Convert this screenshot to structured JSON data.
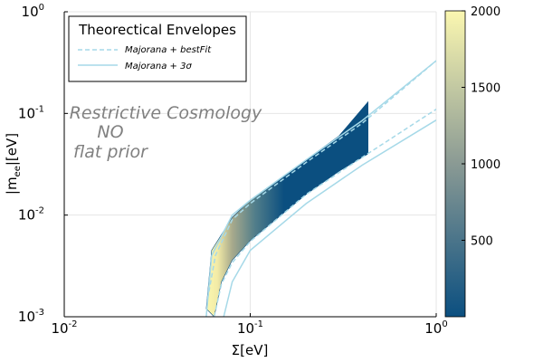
{
  "chart_data": {
    "type": "heatmap",
    "xlabel": "Σ[eV]",
    "ylabel": "|m_ee|[eV]",
    "xscale": "log",
    "yscale": "log",
    "xlim": [
      0.01,
      1
    ],
    "ylim": [
      0.001,
      1
    ],
    "x_ticks": [
      "10",
      "10",
      "10"
    ],
    "x_tick_exponents": [
      "-2",
      "-1",
      "0"
    ],
    "y_ticks": [
      "10",
      "10",
      "10",
      "10"
    ],
    "y_tick_exponents": [
      "-3",
      "-2",
      "-1",
      "0"
    ],
    "grid": true,
    "colorbar": {
      "range": [
        0,
        2000
      ],
      "ticks": [
        "500",
        "1000",
        "1500",
        "2000"
      ],
      "tick_values": [
        500,
        1000,
        1500,
        2000
      ],
      "colors": [
        "#0b4f80",
        "#8a9a94",
        "#fbf7b0"
      ]
    },
    "annotation": [
      "Restrictive Cosmology",
      "NO",
      "flat prior"
    ],
    "legend": {
      "title": "Theorectical Envelopes",
      "position": "top-left",
      "entries": [
        {
          "label": "Majorana + bestFit",
          "style": "dashed",
          "color": "#a6d9e8"
        },
        {
          "label": "Majorana + 3σ",
          "style": "solid",
          "color": "#a6d9e8"
        }
      ]
    },
    "series": [
      {
        "name": "Majorana + bestFit",
        "branch": "upper",
        "x": [
          0.059,
          0.065,
          0.08,
          0.1,
          0.2,
          0.4,
          1.0
        ],
        "y": [
          0.0015,
          0.004,
          0.009,
          0.013,
          0.033,
          0.08,
          0.33
        ]
      },
      {
        "name": "Majorana + bestFit",
        "branch": "lower",
        "x": [
          0.064,
          0.07,
          0.08,
          0.1,
          0.2,
          0.4,
          1.0
        ],
        "y": [
          0.001,
          0.0021,
          0.0034,
          0.0055,
          0.016,
          0.037,
          0.11
        ]
      },
      {
        "name": "Majorana + 3σ",
        "branch": "upper",
        "x": [
          0.058,
          0.062,
          0.08,
          0.1,
          0.2,
          0.4,
          1.0
        ],
        "y": [
          0.001,
          0.004,
          0.01,
          0.014,
          0.035,
          0.085,
          0.33
        ]
      },
      {
        "name": "Majorana + 3σ",
        "branch": "lower",
        "x": [
          0.072,
          0.08,
          0.1,
          0.2,
          0.4,
          1.0
        ],
        "y": [
          0.001,
          0.0022,
          0.0045,
          0.013,
          0.031,
          0.086
        ]
      }
    ],
    "density": {
      "x_range": [
        0.058,
        0.43
      ],
      "upper_edge": {
        "x": [
          0.058,
          0.062,
          0.08,
          0.1,
          0.2,
          0.3,
          0.43
        ],
        "y": [
          0.0012,
          0.0045,
          0.0095,
          0.014,
          0.035,
          0.06,
          0.13
        ]
      },
      "lower_edge": {
        "x": [
          0.064,
          0.07,
          0.08,
          0.1,
          0.2,
          0.3,
          0.43
        ],
        "y": [
          0.001,
          0.0022,
          0.0036,
          0.0056,
          0.016,
          0.027,
          0.04
        ]
      }
    }
  }
}
